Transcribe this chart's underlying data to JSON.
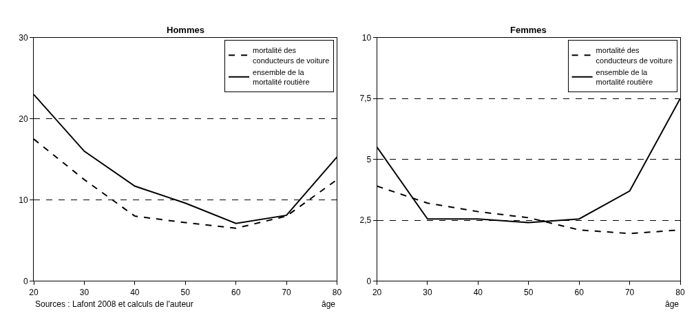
{
  "chart_data": [
    {
      "type": "line",
      "title": "Hommes",
      "xlabel": "âge",
      "x": [
        20,
        30,
        40,
        50,
        60,
        70,
        80
      ],
      "series": [
        {
          "name": "mortalité des conducteurs de voiture",
          "color": "#000000",
          "line_style": "dashed",
          "values": [
            17.5,
            12.5,
            8,
            7.2,
            6.5,
            8,
            12.5
          ]
        },
        {
          "name": "ensemble de la mortalité routière",
          "color": "#000000",
          "line_style": "solid",
          "values": [
            23,
            16,
            11.7,
            9.6,
            7.1,
            8.1,
            15.3
          ]
        }
      ],
      "xlim": [
        20,
        80
      ],
      "xticks": [
        20,
        30,
        40,
        50,
        60,
        70,
        80
      ],
      "ylim": [
        0,
        30
      ],
      "yticks": [
        0,
        10,
        20,
        30
      ],
      "grid": "y",
      "legend": "top right",
      "marker": "none",
      "annotations": [
        "Sources : Lafont 2008 et calculs de l'auteur"
      ]
    },
    {
      "type": "line",
      "title": "Femmes",
      "xlabel": "âge",
      "x": [
        20,
        30,
        40,
        50,
        60,
        70,
        80
      ],
      "series": [
        {
          "name": "mortalité des conducteurs de voiture",
          "color": "#000000",
          "line_style": "dashed",
          "values": [
            3.9,
            3.2,
            2.85,
            2.6,
            2.1,
            1.95,
            2.1
          ]
        },
        {
          "name": "ensemble de la mortalité routière",
          "color": "#000000",
          "line_style": "solid",
          "values": [
            5.5,
            2.55,
            2.55,
            2.4,
            2.55,
            3.7,
            7.5
          ]
        }
      ],
      "xlim": [
        20,
        80
      ],
      "xticks": [
        20,
        30,
        40,
        50,
        60,
        70,
        80
      ],
      "ylim": [
        0,
        10
      ],
      "yticks": [
        0,
        {
          "value": 2.5,
          "label": "2,5"
        },
        5,
        {
          "value": 7.5,
          "label": "7,5"
        },
        10
      ],
      "grid": "y",
      "legend": "top right",
      "marker": "none"
    }
  ]
}
